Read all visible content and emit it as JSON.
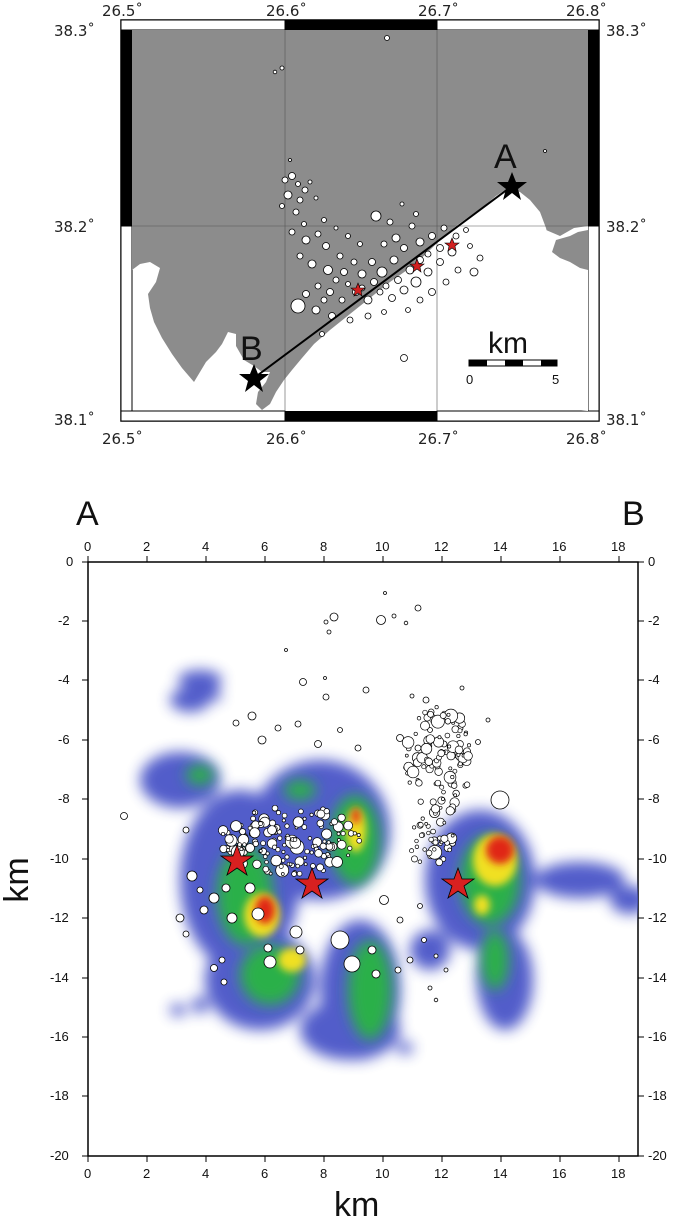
{
  "map": {
    "lon_ticks": [
      "26.5˚",
      "26.6˚",
      "26.7˚",
      "26.8˚"
    ],
    "lat_ticks": [
      "38.3˚",
      "38.2˚",
      "38.1˚"
    ],
    "point_a": "A",
    "point_b": "B",
    "scale_unit": "km",
    "scale_start": "0",
    "scale_end": "5",
    "colors": {
      "land": "#8a8a8a",
      "sea": "#ffffff",
      "star_main": "#000000",
      "star_inner": "#d22020"
    }
  },
  "section": {
    "end_left": "A",
    "end_right": "B",
    "x_ticks": [
      "0",
      "2",
      "4",
      "6",
      "8",
      "10",
      "12",
      "14",
      "16",
      "18"
    ],
    "y_ticks": [
      "0",
      "-2",
      "-4",
      "-6",
      "-8",
      "-10",
      "-12",
      "-14",
      "-16",
      "-18",
      "-20"
    ],
    "x_label": "km",
    "y_label": "km",
    "colors": {
      "low": "#4a55c8",
      "mid": "#2ab048",
      "high": "#f0e020",
      "peak": "#e02818",
      "star": "#d82020"
    }
  }
}
